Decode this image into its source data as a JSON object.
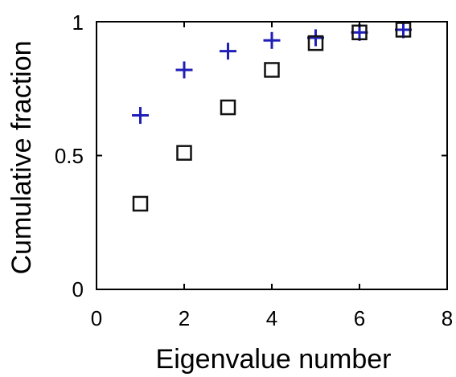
{
  "chart_data": {
    "type": "scatter",
    "title": "",
    "xlabel": "Eigenvalue number",
    "ylabel": "Cumulative fraction",
    "xlim": [
      0,
      8
    ],
    "ylim": [
      0,
      1
    ],
    "x_ticks": [
      0,
      2,
      4,
      6,
      8
    ],
    "x_tick_labels": [
      "0",
      "2",
      "4",
      "6",
      "8"
    ],
    "y_ticks": [
      0,
      0.5,
      1
    ],
    "y_tick_labels": [
      "0",
      "0.5",
      "1"
    ],
    "grid": false,
    "legend": "none",
    "series": [
      {
        "marker": "plus",
        "color": "#1f1fb8",
        "x": [
          1,
          2,
          3,
          4,
          5,
          6,
          7
        ],
        "y": [
          0.65,
          0.82,
          0.89,
          0.93,
          0.94,
          0.96,
          0.97
        ]
      },
      {
        "marker": "square",
        "color": "#111111",
        "x": [
          1,
          2,
          3,
          4,
          5,
          6,
          7
        ],
        "y": [
          0.32,
          0.51,
          0.68,
          0.82,
          0.92,
          0.96,
          0.97
        ]
      }
    ]
  }
}
